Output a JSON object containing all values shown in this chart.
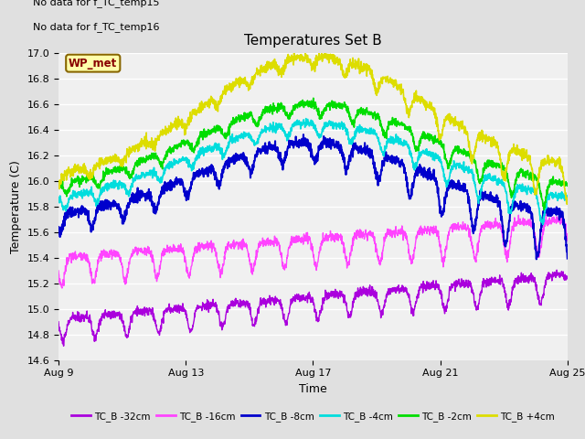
{
  "title": "Temperatures Set B",
  "xlabel": "Time",
  "ylabel": "Temperature (C)",
  "no_data_text": [
    "No data for f_TC_temp15",
    "No data for f_TC_temp16"
  ],
  "wp_met_label": "WP_met",
  "background_color": "#e0e0e0",
  "plot_bg_color": "#f0f0f0",
  "ylim": [
    14.6,
    17.0
  ],
  "yticks": [
    14.6,
    14.8,
    15.0,
    15.2,
    15.4,
    15.6,
    15.8,
    16.0,
    16.2,
    16.4,
    16.6,
    16.8,
    17.0
  ],
  "xtick_labels": [
    "Aug 9",
    "Aug 13",
    "Aug 17",
    "Aug 21",
    "Aug 25"
  ],
  "legend_entries": [
    {
      "label": "TC_B -32cm",
      "color": "#aa00dd"
    },
    {
      "label": "TC_B -16cm",
      "color": "#ff44ff"
    },
    {
      "label": "TC_B -8cm",
      "color": "#0000cc"
    },
    {
      "label": "TC_B -4cm",
      "color": "#00dddd"
    },
    {
      "label": "TC_B -2cm",
      "color": "#00dd00"
    },
    {
      "label": "TC_B +4cm",
      "color": "#dddd00"
    }
  ]
}
